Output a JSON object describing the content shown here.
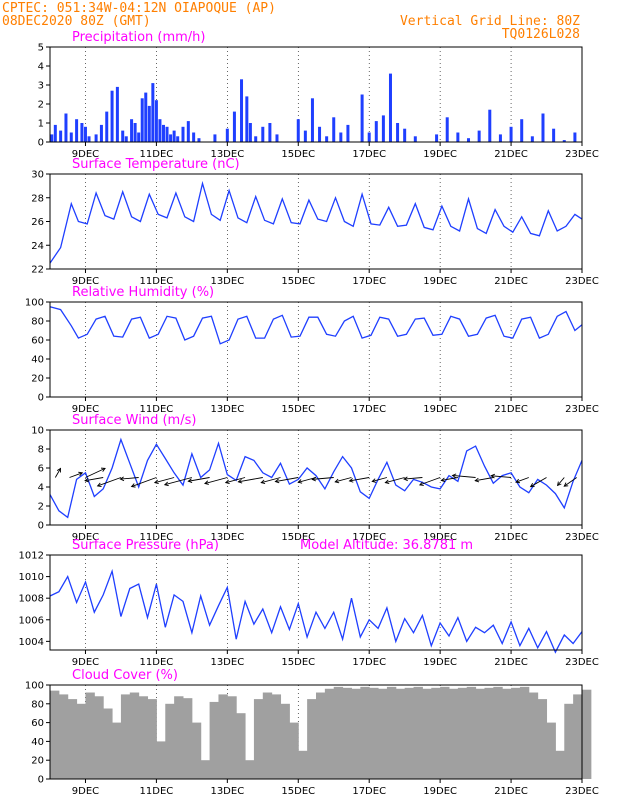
{
  "header": {
    "line1": "CPTEC:   051:34W-04:12N   OIAPOQUE (AP)",
    "line2": "08DEC2020 80Z (GMT)",
    "right1": "Vertical Grid Line: 80Z",
    "right2": "TQ0126L028"
  },
  "x_axis": {
    "ticks": [
      {
        "day": 9,
        "label": "9DEC"
      },
      {
        "day": 11,
        "label": "11DEC"
      },
      {
        "day": 13,
        "label": "13DEC"
      },
      {
        "day": 15,
        "label": "15DEC"
      },
      {
        "day": 17,
        "label": "17DEC"
      },
      {
        "day": 19,
        "label": "19DEC"
      },
      {
        "day": 21,
        "label": "21DEC"
      },
      {
        "day": 23,
        "label": "23DEC"
      }
    ],
    "start_day": 8.0,
    "end_day": 23.0
  },
  "colors": {
    "series": "#1f3fff",
    "cloud": "#a0a0a0",
    "grid": "#000000",
    "title": "#ff00ff",
    "header": "#ff7f00"
  },
  "chart_data": [
    {
      "type": "bar",
      "title": "Precipitation (mm/h)",
      "ylim": [
        0,
        5
      ],
      "yticks": [
        0,
        1,
        2,
        3,
        4,
        5
      ],
      "x": [
        8.05,
        8.15,
        8.3,
        8.45,
        8.6,
        8.75,
        8.9,
        9.0,
        9.1,
        9.3,
        9.45,
        9.6,
        9.75,
        9.9,
        10.05,
        10.15,
        10.3,
        10.4,
        10.5,
        10.6,
        10.7,
        10.8,
        10.9,
        11.0,
        11.1,
        11.2,
        11.3,
        11.4,
        11.5,
        11.6,
        11.75,
        11.9,
        12.05,
        12.2,
        12.35,
        12.5,
        12.65,
        12.8,
        13.0,
        13.2,
        13.4,
        13.55,
        13.65,
        13.8,
        14.0,
        14.2,
        14.4,
        14.6,
        14.8,
        15.0,
        15.2,
        15.4,
        15.6,
        15.8,
        16.0,
        16.2,
        16.4,
        16.6,
        16.8,
        17.0,
        17.2,
        17.4,
        17.6,
        17.8,
        18.0,
        18.3,
        18.6,
        18.9,
        19.2,
        19.5,
        19.8,
        20.1,
        20.4,
        20.7,
        21.0,
        21.3,
        21.6,
        21.9,
        22.2,
        22.5,
        22.8
      ],
      "values": [
        0.4,
        0.9,
        0.6,
        1.5,
        0.5,
        1.2,
        1.0,
        0.8,
        0.3,
        0.4,
        0.9,
        1.6,
        2.7,
        2.9,
        0.6,
        0.3,
        1.2,
        1.0,
        0.5,
        2.3,
        2.6,
        1.9,
        3.1,
        2.2,
        1.2,
        0.9,
        0.8,
        0.4,
        0.6,
        0.3,
        0.8,
        1.1,
        0.5,
        0.2,
        0.0,
        0.0,
        0.4,
        0.0,
        0.7,
        1.6,
        3.3,
        2.4,
        1.0,
        0.3,
        0.8,
        1.0,
        0.4,
        0.0,
        0.0,
        1.2,
        0.6,
        2.3,
        0.8,
        0.3,
        1.3,
        0.5,
        0.9,
        0.0,
        2.5,
        0.5,
        1.1,
        1.4,
        3.6,
        1.0,
        0.7,
        0.3,
        0.0,
        0.4,
        1.3,
        0.5,
        0.2,
        0.6,
        1.7,
        0.4,
        0.8,
        1.2,
        0.3,
        1.5,
        0.7,
        0.1,
        0.5
      ]
    },
    {
      "type": "line",
      "title": "Surface Temperature (nC)",
      "ylim": [
        22,
        30
      ],
      "yticks": [
        22,
        24,
        26,
        28,
        30
      ],
      "x": [
        8.0,
        8.3,
        8.6,
        8.8,
        9.05,
        9.3,
        9.55,
        9.8,
        10.05,
        10.3,
        10.55,
        10.8,
        11.05,
        11.3,
        11.55,
        11.8,
        12.05,
        12.3,
        12.55,
        12.8,
        13.05,
        13.3,
        13.55,
        13.8,
        14.05,
        14.3,
        14.55,
        14.8,
        15.05,
        15.3,
        15.55,
        15.8,
        16.05,
        16.3,
        16.55,
        16.8,
        17.05,
        17.3,
        17.55,
        17.8,
        18.05,
        18.3,
        18.55,
        18.8,
        19.05,
        19.3,
        19.55,
        19.8,
        20.05,
        20.3,
        20.55,
        20.8,
        21.05,
        21.3,
        21.55,
        21.8,
        22.05,
        22.3,
        22.55,
        22.8,
        23.0
      ],
      "values": [
        22.5,
        23.8,
        27.5,
        26.0,
        25.8,
        28.4,
        26.5,
        26.2,
        28.5,
        26.4,
        26.0,
        28.3,
        26.6,
        26.3,
        28.4,
        26.4,
        26.0,
        29.2,
        26.6,
        26.1,
        28.6,
        26.3,
        25.9,
        28.1,
        26.1,
        25.8,
        27.9,
        25.9,
        25.8,
        27.8,
        26.2,
        26.0,
        28.0,
        26.0,
        25.6,
        28.3,
        25.8,
        25.7,
        27.2,
        25.6,
        25.7,
        27.5,
        25.5,
        25.3,
        27.3,
        25.6,
        25.2,
        27.9,
        25.4,
        25.0,
        27.0,
        25.6,
        25.1,
        26.4,
        25.0,
        24.8,
        26.9,
        25.2,
        25.6,
        26.6,
        26.2
      ]
    },
    {
      "type": "line",
      "title": "Relative Humidity (%)",
      "ylim": [
        0,
        100
      ],
      "yticks": [
        0,
        20,
        40,
        60,
        80,
        100
      ],
      "x": [
        8.0,
        8.3,
        8.6,
        8.8,
        9.05,
        9.3,
        9.55,
        9.8,
        10.05,
        10.3,
        10.55,
        10.8,
        11.05,
        11.3,
        11.55,
        11.8,
        12.05,
        12.3,
        12.55,
        12.8,
        13.05,
        13.3,
        13.55,
        13.8,
        14.05,
        14.3,
        14.55,
        14.8,
        15.05,
        15.3,
        15.55,
        15.8,
        16.05,
        16.3,
        16.55,
        16.8,
        17.05,
        17.3,
        17.55,
        17.8,
        18.05,
        18.3,
        18.55,
        18.8,
        19.05,
        19.3,
        19.55,
        19.8,
        20.05,
        20.3,
        20.55,
        20.8,
        21.05,
        21.3,
        21.55,
        21.8,
        22.05,
        22.3,
        22.55,
        22.8,
        23.0
      ],
      "values": [
        95,
        92,
        75,
        62,
        66,
        82,
        85,
        64,
        63,
        82,
        84,
        62,
        66,
        85,
        83,
        60,
        64,
        83,
        85,
        56,
        60,
        82,
        85,
        62,
        62,
        82,
        86,
        63,
        64,
        84,
        84,
        66,
        64,
        80,
        85,
        62,
        65,
        84,
        82,
        64,
        66,
        82,
        83,
        65,
        66,
        85,
        82,
        64,
        66,
        83,
        86,
        64,
        62,
        82,
        84,
        62,
        66,
        85,
        90,
        70,
        76
      ]
    },
    {
      "type": "line",
      "title": "Surface Wind (m/s)",
      "ylim": [
        0,
        10
      ],
      "yticks": [
        0,
        2,
        4,
        6,
        8,
        10
      ],
      "x": [
        8.0,
        8.25,
        8.5,
        8.75,
        9.0,
        9.25,
        9.5,
        9.75,
        10.0,
        10.25,
        10.5,
        10.75,
        11.0,
        11.25,
        11.5,
        11.75,
        12.0,
        12.25,
        12.5,
        12.75,
        13.0,
        13.25,
        13.5,
        13.75,
        14.0,
        14.25,
        14.5,
        14.75,
        15.0,
        15.25,
        15.5,
        15.75,
        16.0,
        16.25,
        16.5,
        16.75,
        17.0,
        17.25,
        17.5,
        17.75,
        18.0,
        18.25,
        18.5,
        18.75,
        19.0,
        19.25,
        19.5,
        19.75,
        20.0,
        20.25,
        20.5,
        20.75,
        21.0,
        21.25,
        21.5,
        21.75,
        22.0,
        22.25,
        22.5,
        22.75,
        23.0
      ],
      "values": [
        3.2,
        1.5,
        0.8,
        4.8,
        5.5,
        3.0,
        3.8,
        6.0,
        9.0,
        6.5,
        4.0,
        6.8,
        8.5,
        7.0,
        5.5,
        4.2,
        7.5,
        5.0,
        5.8,
        8.6,
        5.3,
        4.7,
        7.2,
        6.8,
        5.5,
        5.0,
        6.5,
        4.3,
        4.8,
        6.0,
        5.2,
        3.8,
        5.6,
        7.2,
        6.0,
        3.5,
        2.8,
        4.8,
        6.6,
        4.2,
        3.6,
        4.8,
        4.5,
        4.0,
        3.8,
        5.2,
        4.6,
        7.8,
        8.3,
        6.2,
        4.4,
        5.2,
        5.5,
        4.0,
        3.4,
        4.8,
        4.2,
        3.3,
        1.8,
        4.6,
        6.8
      ],
      "vectors": {
        "x": [
          8.15,
          8.55,
          9.0,
          9.5,
          10.0,
          10.5,
          11.0,
          11.5,
          12.0,
          12.5,
          13.0,
          13.5,
          14.0,
          14.5,
          15.0,
          15.5,
          16.0,
          16.5,
          17.0,
          17.5,
          18.0,
          18.5,
          19.0,
          19.5,
          20.0,
          20.5,
          21.0,
          21.5,
          22.0,
          22.5,
          22.85
        ],
        "speed": [
          2.0,
          3.0,
          5.5,
          4.5,
          6.5,
          4.5,
          7.0,
          5.0,
          7.5,
          5.5,
          6.0,
          5.0,
          6.5,
          5.0,
          6.0,
          4.5,
          5.5,
          4.0,
          5.0,
          3.5,
          5.0,
          4.5,
          5.5,
          4.0,
          6.0,
          4.5,
          5.0,
          3.0,
          4.5,
          2.0,
          3.5
        ],
        "dir_deg": [
          60,
          20,
          25,
          190,
          200,
          185,
          200,
          195,
          195,
          190,
          195,
          195,
          190,
          195,
          190,
          195,
          185,
          195,
          190,
          195,
          195,
          185,
          200,
          190,
          175,
          190,
          175,
          200,
          210,
          230,
          215
        ]
      }
    },
    {
      "type": "line",
      "title": "Surface Pressure (hPa)",
      "subtitle": "Model Altitude: 36.8781 m",
      "ylim": [
        1003.2,
        1012
      ],
      "yticks": [
        1004,
        1006,
        1008,
        1010,
        1012
      ],
      "x": [
        8.0,
        8.25,
        8.5,
        8.75,
        9.0,
        9.25,
        9.5,
        9.75,
        10.0,
        10.25,
        10.5,
        10.75,
        11.0,
        11.25,
        11.5,
        11.75,
        12.0,
        12.25,
        12.5,
        12.75,
        13.0,
        13.25,
        13.5,
        13.75,
        14.0,
        14.25,
        14.5,
        14.75,
        15.0,
        15.25,
        15.5,
        15.75,
        16.0,
        16.25,
        16.5,
        16.75,
        17.0,
        17.25,
        17.5,
        17.75,
        18.0,
        18.25,
        18.5,
        18.75,
        19.0,
        19.25,
        19.5,
        19.75,
        20.0,
        20.25,
        20.5,
        20.75,
        21.0,
        21.25,
        21.5,
        21.75,
        22.0,
        22.25,
        22.5,
        22.75,
        23.0
      ],
      "values": [
        1008.2,
        1008.6,
        1010.0,
        1007.6,
        1009.5,
        1006.7,
        1008.3,
        1010.5,
        1006.3,
        1008.9,
        1009.3,
        1006.2,
        1009.3,
        1005.3,
        1008.3,
        1007.7,
        1004.8,
        1008.2,
        1005.5,
        1007.3,
        1009.0,
        1004.2,
        1007.7,
        1005.6,
        1007.0,
        1004.8,
        1007.2,
        1005.1,
        1007.5,
        1004.4,
        1006.7,
        1005.2,
        1006.7,
        1004.2,
        1008.0,
        1004.4,
        1006.0,
        1005.2,
        1007.1,
        1004.0,
        1006.1,
        1004.8,
        1006.4,
        1003.6,
        1005.7,
        1004.5,
        1006.2,
        1004.0,
        1005.3,
        1004.8,
        1005.5,
        1003.8,
        1005.8,
        1003.6,
        1005.2,
        1003.4,
        1004.9,
        1003.0,
        1004.6,
        1003.8,
        1004.9
      ]
    },
    {
      "type": "area",
      "title": "Cloud Cover (%)",
      "ylim": [
        0,
        100
      ],
      "yticks": [
        0,
        20,
        40,
        60,
        80,
        100
      ],
      "x": [
        8.0,
        8.25,
        8.5,
        8.75,
        9.0,
        9.25,
        9.5,
        9.75,
        10.0,
        10.25,
        10.5,
        10.75,
        11.0,
        11.25,
        11.5,
        11.75,
        12.0,
        12.25,
        12.5,
        12.75,
        13.0,
        13.25,
        13.5,
        13.75,
        14.0,
        14.25,
        14.5,
        14.75,
        15.0,
        15.25,
        15.5,
        15.75,
        16.0,
        16.25,
        16.5,
        16.75,
        17.0,
        17.25,
        17.5,
        17.75,
        18.0,
        18.25,
        18.5,
        18.75,
        19.0,
        19.25,
        19.5,
        19.75,
        20.0,
        20.25,
        20.5,
        20.75,
        21.0,
        21.25,
        21.5,
        21.75,
        22.0,
        22.25,
        22.5,
        22.75,
        23.0
      ],
      "values": [
        94,
        90,
        85,
        80,
        92,
        88,
        75,
        60,
        90,
        92,
        88,
        85,
        40,
        80,
        88,
        86,
        60,
        20,
        82,
        90,
        88,
        70,
        20,
        85,
        92,
        90,
        80,
        60,
        30,
        85,
        92,
        96,
        98,
        97,
        96,
        98,
        97,
        96,
        98,
        96,
        97,
        98,
        96,
        97,
        98,
        96,
        97,
        98,
        96,
        97,
        98,
        96,
        97,
        98,
        92,
        85,
        60,
        30,
        80,
        90,
        95
      ]
    }
  ]
}
